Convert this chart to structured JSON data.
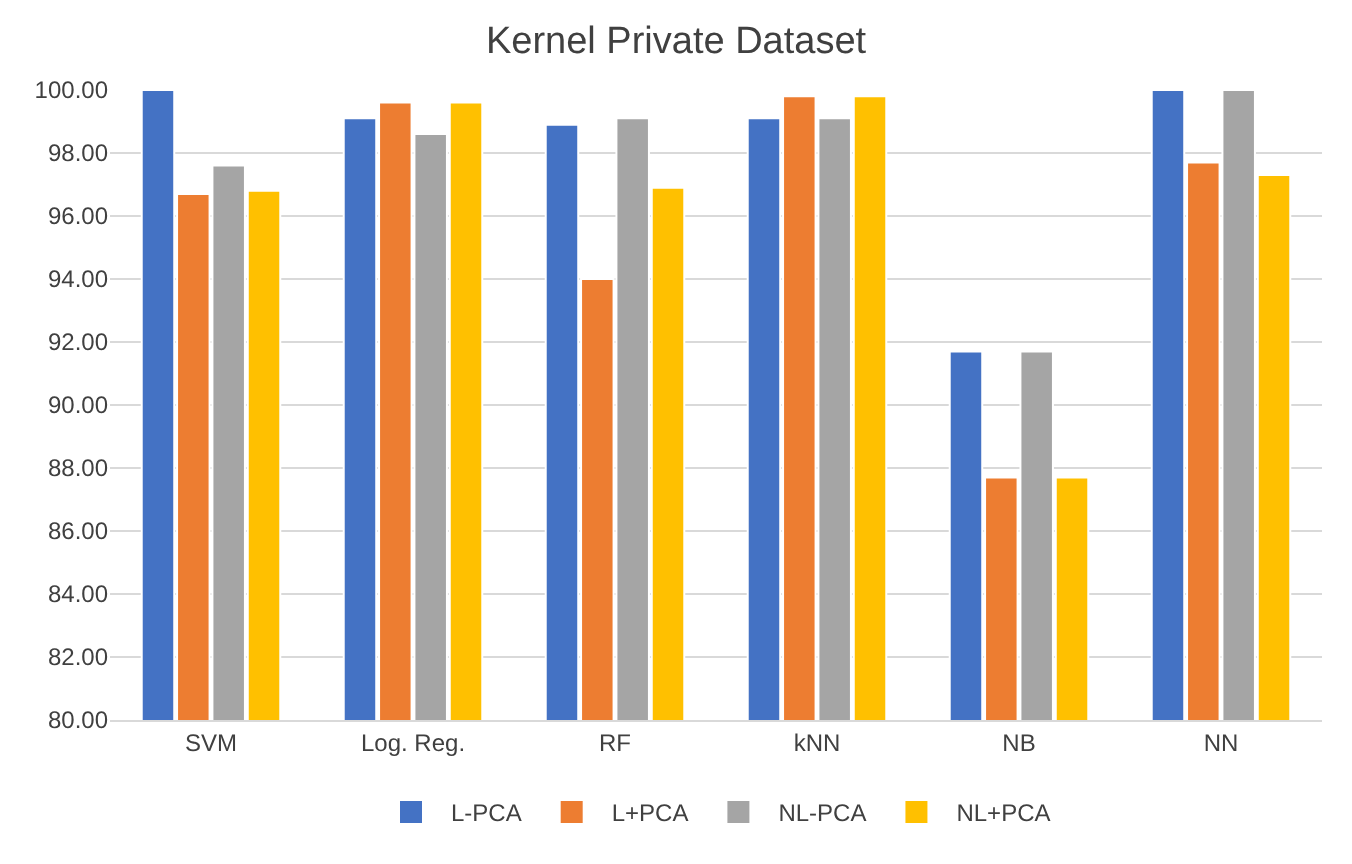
{
  "chart_data": {
    "type": "bar",
    "title": "Kernel Private Dataset",
    "categories": [
      "SVM",
      "Log. Reg.",
      "RF",
      "kNN",
      "NB",
      "NN"
    ],
    "series": [
      {
        "name": "L-PCA",
        "color": "#4472c4",
        "values": [
          100.0,
          99.1,
          98.9,
          99.1,
          91.7,
          100.0
        ]
      },
      {
        "name": "L+PCA",
        "color": "#ed7d31",
        "values": [
          96.7,
          99.6,
          94.0,
          99.8,
          87.7,
          97.7
        ]
      },
      {
        "name": "NL-PCA",
        "color": "#a5a5a5",
        "values": [
          97.6,
          98.6,
          99.1,
          99.1,
          91.7,
          100.0
        ]
      },
      {
        "name": "NL+PCA",
        "color": "#ffc000",
        "values": [
          96.8,
          99.6,
          96.9,
          99.8,
          87.7,
          97.3
        ]
      }
    ],
    "ylim": [
      80,
      100
    ],
    "yticks": [
      {
        "value": 80,
        "label": "80.00"
      },
      {
        "value": 82,
        "label": "82.00"
      },
      {
        "value": 84,
        "label": "84.00"
      },
      {
        "value": 86,
        "label": "86.00"
      },
      {
        "value": 88,
        "label": "88.00"
      },
      {
        "value": 90,
        "label": "90.00"
      },
      {
        "value": 92,
        "label": "92.00"
      },
      {
        "value": 94,
        "label": "94.00"
      },
      {
        "value": 96,
        "label": "96.00"
      },
      {
        "value": 98,
        "label": "98.00"
      },
      {
        "value": 100,
        "label": "100.00"
      }
    ],
    "grid": "y",
    "legend": "bottom"
  }
}
